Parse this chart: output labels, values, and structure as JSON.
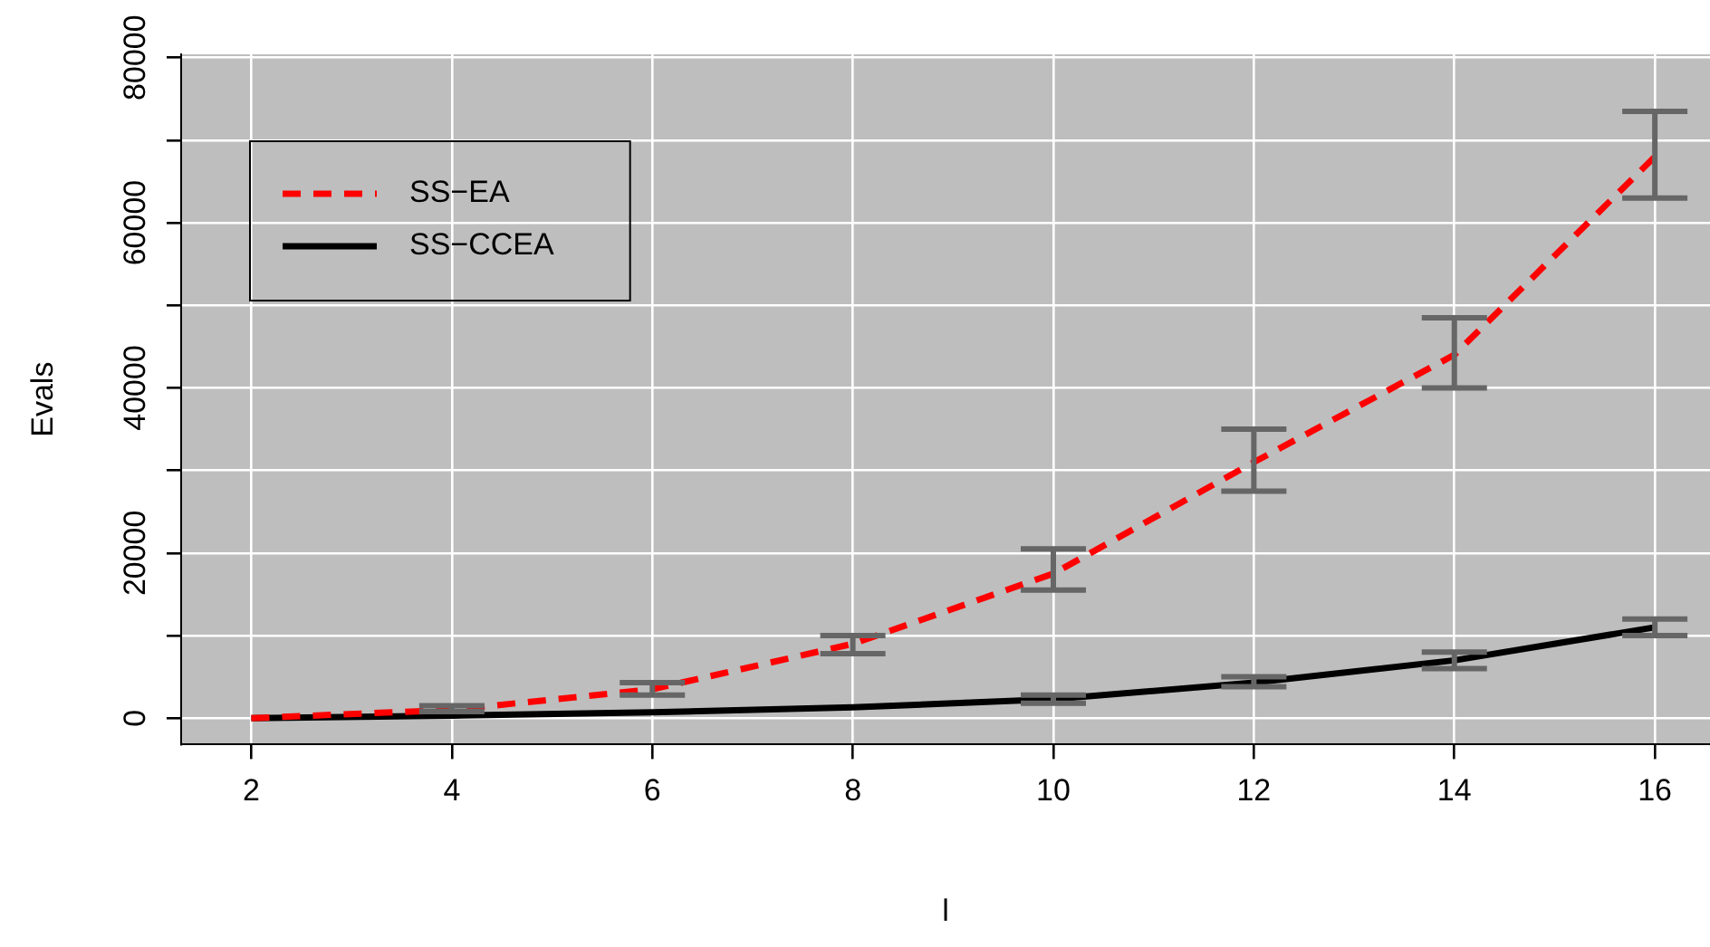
{
  "chart_data": {
    "type": "line",
    "xlabel": "l",
    "ylabel": "Evals",
    "x": [
      2,
      4,
      6,
      8,
      10,
      12,
      14,
      16
    ],
    "series": [
      {
        "name": "SS−EA",
        "color": "#ff0000",
        "line_style": "dashed",
        "values": [
          0,
          1000,
          3500,
          9000,
          17500,
          31000,
          44000,
          68000
        ],
        "errors": [
          null,
          [
            800,
            1500
          ],
          [
            2800,
            4300
          ],
          [
            7800,
            10000
          ],
          [
            15500,
            20500
          ],
          [
            27500,
            35000
          ],
          [
            40000,
            48500
          ],
          [
            63000,
            73500
          ]
        ]
      },
      {
        "name": "SS−CCEA",
        "color": "#000000",
        "line_style": "solid",
        "values": [
          0,
          300,
          700,
          1300,
          2300,
          4300,
          7000,
          11000
        ],
        "errors": [
          null,
          null,
          null,
          null,
          [
            1800,
            2800
          ],
          [
            3800,
            5000
          ],
          [
            6000,
            8000
          ],
          [
            10000,
            12000
          ]
        ]
      }
    ],
    "xlim": [
      1.3,
      16.55
    ],
    "xticks": [
      2,
      4,
      6,
      8,
      10,
      12,
      14,
      16
    ],
    "ylim": [
      -3200,
      80400
    ],
    "yticks": [
      0,
      {
        "value": 10000,
        "label": null
      },
      20000,
      {
        "value": 30000,
        "label": null
      },
      40000,
      {
        "value": 50000,
        "label": null
      },
      60000,
      {
        "value": 70000,
        "label": null
      },
      80000
    ],
    "grid": true,
    "legend": "top left",
    "marker": "none"
  }
}
